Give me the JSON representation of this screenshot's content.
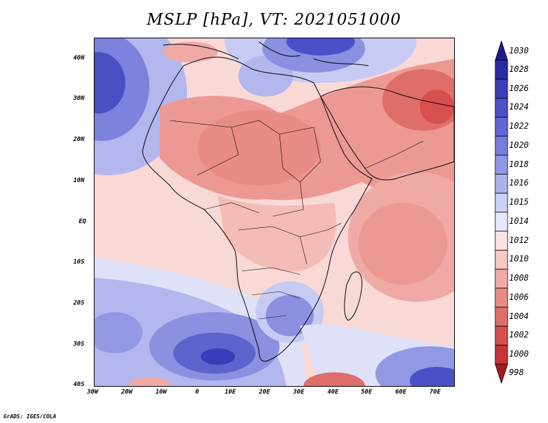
{
  "title": "MSLP [hPa], VT: 2021051000",
  "credit": "GrADS: IGES/COLA",
  "axes": {
    "lat_labels": [
      "40N",
      "30N",
      "20N",
      "10N",
      "EQ",
      "10S",
      "20S",
      "30S",
      "40S"
    ],
    "lon_labels": [
      "30W",
      "20W",
      "10W",
      "0",
      "10E",
      "20E",
      "30E",
      "40E",
      "50E",
      "60E",
      "70E"
    ]
  },
  "colorbar": {
    "levels": [
      "1030",
      "1028",
      "1026",
      "1024",
      "1022",
      "1020",
      "1018",
      "1016",
      "1015",
      "1014",
      "1012",
      "1010",
      "1008",
      "1006",
      "1004",
      "1002",
      "1000",
      "998"
    ],
    "colors": [
      "#1f1a8c",
      "#2b2aa6",
      "#3a3db8",
      "#4c50c8",
      "#6166d2",
      "#787ddb",
      "#9196e3",
      "#aeb2ec",
      "#cdd0f5",
      "#e7e8fb",
      "#fbe4e2",
      "#f6c9c5",
      "#f0aaa5",
      "#e88c87",
      "#df6e6a",
      "#d5504f",
      "#c73436",
      "#a81c20"
    ]
  },
  "map_colors": {
    "ocean_neutral": "#f8d9d5",
    "high_light": "#dcdff8",
    "high_mid": "#a9aeea",
    "high_strong": "#6a70d4",
    "high_core": "#3a3db8",
    "low_light": "#f0aaa5",
    "low_mid": "#e88c87",
    "low_strong": "#d9605c"
  }
}
